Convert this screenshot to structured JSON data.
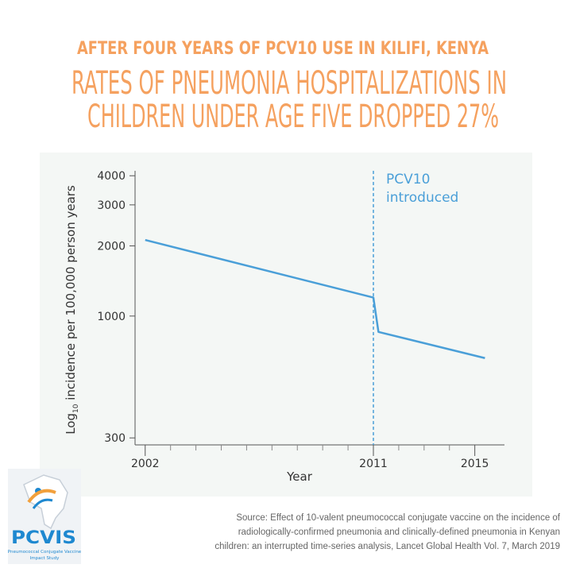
{
  "header": {
    "kicker": "AFTER FOUR YEARS OF PCV10 USE IN KILIFI, KENYA",
    "headline": [
      "RATES OF PNEUMONIA HOSPITALIZATIONS IN",
      "CHILDREN UNDER AGE FIVE DROPPED 27%"
    ]
  },
  "chart_data": {
    "type": "line",
    "log_scale_y": true,
    "x_label": "Year",
    "y_label": {
      "prefix": "Log",
      "subscript": "10",
      "rest": " incidence per 100,000 person years"
    },
    "x": [
      2002,
      2011,
      2011.2,
      2015.4
    ],
    "series": [
      {
        "name": "Incidence",
        "color": "#4a9fd8",
        "values": [
          2120,
          1200,
          855,
          660
        ]
      }
    ],
    "xlim": [
      2001.6,
      2015.7
    ],
    "xticks": [
      2002,
      2011,
      2015
    ],
    "xminorticks": [
      2003,
      2004,
      2005,
      2006,
      2007,
      2008,
      2009,
      2010,
      2012,
      2013,
      2014
    ],
    "ylim": [
      280,
      4200
    ],
    "yticks": [
      300,
      1000,
      2000,
      3000,
      4000
    ],
    "annotation": {
      "x": 2011,
      "lines": [
        "PCV10",
        "introduced"
      ]
    }
  },
  "source": [
    "Source: Effect of 10-valent pneumococcal conjugate vaccine on the incidence of",
    "radiologically-confirmed pneumonia and clinically-defined pneumonia in Kenyan",
    "children: an interrupted time-series analysis, Lancet Global Health Vol. 7, March 2019"
  ],
  "logo": {
    "name": "PCVIS",
    "subtitle": [
      "Pneumococcal Conjugate Vaccine",
      "Impact Study"
    ]
  }
}
